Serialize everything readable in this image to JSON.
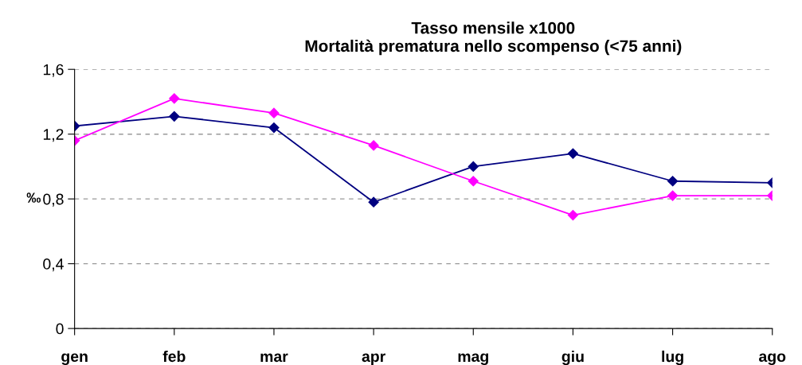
{
  "chart_data": {
    "type": "line",
    "title": "Tasso mensile x1000\nMortalità prematura nello scompenso (<75 anni)",
    "ylabel": "‰",
    "categories": [
      "gen",
      "feb",
      "mar",
      "apr",
      "mag",
      "giu",
      "lug",
      "ago"
    ],
    "series": [
      {
        "color": "#000080",
        "values": [
          1.25,
          1.31,
          1.24,
          0.78,
          1.0,
          1.08,
          0.91,
          0.9
        ]
      },
      {
        "color": "#ff00ff",
        "values": [
          1.16,
          1.42,
          1.33,
          1.13,
          0.91,
          0.7,
          0.82,
          0.82
        ]
      }
    ],
    "ylim": [
      0,
      1.6
    ],
    "yticks": [
      {
        "value": 0,
        "label": "0"
      },
      {
        "value": 0.4,
        "label": "0,4"
      },
      {
        "value": 0.8,
        "label": "0,8"
      },
      {
        "value": 1.2,
        "label": "1,2"
      },
      {
        "value": 1.6,
        "label": "1,6"
      }
    ],
    "grid": "y",
    "marker": "diamond",
    "line_style": "solid"
  }
}
